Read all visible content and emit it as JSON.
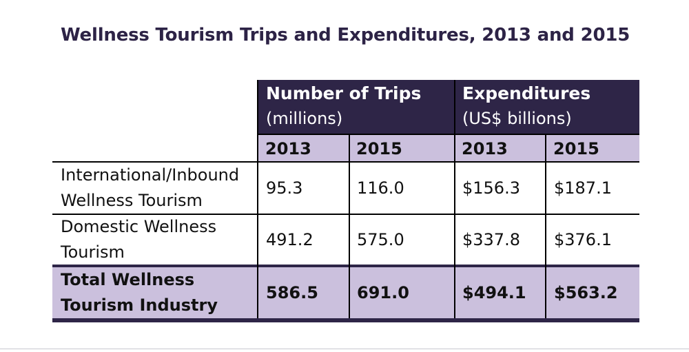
{
  "title": "Wellness Tourism Trips and Expenditures, 2013 and 2015",
  "table": {
    "groups": [
      {
        "line1": "Number of Trips",
        "line2": "(millions)"
      },
      {
        "line1": "Expenditures",
        "line2": "(US$ billions)"
      }
    ],
    "years": [
      "2013",
      "2015",
      "2013",
      "2015"
    ],
    "rows": [
      {
        "label": [
          "International/Inbound",
          "Wellness Tourism"
        ],
        "values": [
          "95.3",
          "116.0",
          "$156.3",
          "$187.1"
        ]
      },
      {
        "label": [
          "Domestic Wellness",
          "Tourism"
        ],
        "values": [
          "491.2",
          "575.0",
          "$337.8",
          "$376.1"
        ]
      },
      {
        "label": [
          "Total Wellness",
          "Tourism Industry"
        ],
        "values": [
          "586.5",
          "691.0",
          "$494.1",
          "$563.2"
        ]
      }
    ]
  },
  "colors": {
    "header": "#2e2547",
    "accent": "#cbc0dd",
    "title": "#2d2346"
  }
}
